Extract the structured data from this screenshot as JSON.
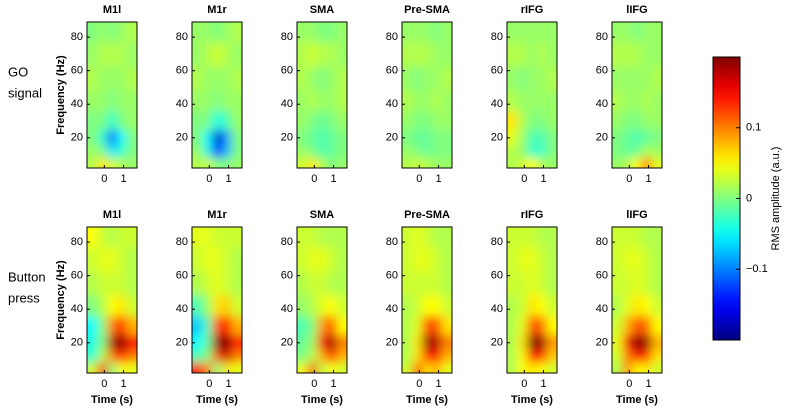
{
  "rows": [
    [
      "GO",
      "signal"
    ],
    [
      "Button",
      "press"
    ]
  ],
  "colorbar": {
    "label": "RMS amplitude (a.u.)",
    "colormap": "jet",
    "lim": [
      -0.2,
      0.2
    ],
    "ticks": [
      {
        "value": -0.1,
        "label": "−0.1"
      },
      0,
      0.1
    ]
  },
  "chart_data": [
    {
      "type": "heatmap",
      "title": "M1l",
      "ylabel": "Frequency (Hz)",
      "xlim": [
        -0.9,
        1.7
      ],
      "ylim": [
        2,
        89
      ],
      "xticks": [
        0,
        1
      ],
      "yticks": [
        20,
        40,
        60,
        80
      ],
      "x": [
        -0.6,
        -0.1,
        0.4,
        0.9,
        1.4
      ],
      "y": [
        5,
        12,
        20,
        30,
        42,
        55,
        70,
        85
      ],
      "z": [
        [
          0.02,
          0.06,
          0.03,
          0.02,
          0.01
        ],
        [
          0.01,
          0.0,
          -0.06,
          -0.03,
          0.0
        ],
        [
          0.0,
          -0.03,
          -0.11,
          -0.05,
          0.0
        ],
        [
          0.0,
          0.0,
          -0.03,
          0.0,
          0.01
        ],
        [
          0.01,
          0.01,
          0.0,
          0.01,
          0.01
        ],
        [
          0.02,
          0.01,
          0.01,
          0.01,
          0.02
        ],
        [
          0.01,
          0.02,
          0.02,
          0.02,
          0.01
        ],
        [
          0.0,
          0.01,
          0.0,
          0.01,
          0.02
        ]
      ]
    },
    {
      "type": "heatmap",
      "title": "M1r",
      "xlim": [
        -0.9,
        1.7
      ],
      "ylim": [
        2,
        89
      ],
      "xticks": [
        0,
        1
      ],
      "yticks": [
        20,
        40,
        60,
        80
      ],
      "x": [
        -0.6,
        -0.1,
        0.4,
        0.9,
        1.4
      ],
      "y": [
        5,
        12,
        20,
        30,
        42,
        55,
        70,
        85
      ],
      "z": [
        [
          0.02,
          0.03,
          0.0,
          0.0,
          0.01
        ],
        [
          0.01,
          -0.04,
          -0.15,
          -0.08,
          0.0
        ],
        [
          0.0,
          -0.05,
          -0.17,
          -0.09,
          0.0
        ],
        [
          0.0,
          0.0,
          -0.04,
          -0.02,
          0.01
        ],
        [
          0.01,
          0.01,
          0.0,
          0.01,
          0.01
        ],
        [
          0.02,
          0.01,
          0.01,
          0.01,
          0.02
        ],
        [
          0.01,
          0.02,
          0.03,
          0.02,
          0.01
        ],
        [
          0.01,
          0.01,
          0.0,
          0.01,
          0.02
        ]
      ]
    },
    {
      "type": "heatmap",
      "title": "SMA",
      "xlim": [
        -0.9,
        1.7
      ],
      "ylim": [
        2,
        89
      ],
      "xticks": [
        0,
        1
      ],
      "yticks": [
        20,
        40,
        60,
        80
      ],
      "x": [
        -0.6,
        -0.1,
        0.4,
        0.9,
        1.4
      ],
      "y": [
        5,
        12,
        20,
        30,
        42,
        55,
        70,
        85
      ],
      "z": [
        [
          0.03,
          0.06,
          0.02,
          0.0,
          0.01
        ],
        [
          0.01,
          0.0,
          -0.02,
          -0.01,
          0.0
        ],
        [
          0.0,
          -0.01,
          -0.02,
          -0.01,
          0.0
        ],
        [
          0.01,
          0.0,
          -0.01,
          0.0,
          0.01
        ],
        [
          0.01,
          0.02,
          0.01,
          0.01,
          0.02
        ],
        [
          0.02,
          0.01,
          0.0,
          0.01,
          0.02
        ],
        [
          0.02,
          0.03,
          0.02,
          0.02,
          0.01
        ],
        [
          0.01,
          0.01,
          0.0,
          0.0,
          0.01
        ]
      ]
    },
    {
      "type": "heatmap",
      "title": "Pre-SMA",
      "xlim": [
        -0.9,
        1.7
      ],
      "ylim": [
        2,
        89
      ],
      "xticks": [
        0,
        1
      ],
      "yticks": [
        20,
        40,
        60,
        80
      ],
      "x": [
        -0.6,
        -0.1,
        0.4,
        0.9,
        1.4
      ],
      "y": [
        5,
        12,
        20,
        30,
        42,
        55,
        70,
        85
      ],
      "z": [
        [
          0.02,
          0.03,
          0.02,
          0.01,
          0.01
        ],
        [
          0.01,
          0.0,
          -0.01,
          0.0,
          0.0
        ],
        [
          0.0,
          -0.01,
          -0.01,
          0.0,
          0.0
        ],
        [
          0.01,
          0.0,
          0.0,
          0.01,
          0.01
        ],
        [
          0.02,
          0.01,
          0.01,
          0.02,
          0.01
        ],
        [
          0.01,
          0.0,
          0.01,
          0.01,
          0.02
        ],
        [
          0.02,
          0.02,
          0.02,
          0.01,
          0.01
        ],
        [
          0.01,
          0.01,
          0.01,
          0.0,
          0.01
        ]
      ]
    },
    {
      "type": "heatmap",
      "title": "rIFG",
      "xlim": [
        -0.9,
        1.7
      ],
      "ylim": [
        2,
        89
      ],
      "xticks": [
        0,
        1
      ],
      "yticks": [
        20,
        40,
        60,
        80
      ],
      "x": [
        -0.6,
        -0.1,
        0.4,
        0.9,
        1.4
      ],
      "y": [
        5,
        12,
        20,
        30,
        42,
        55,
        70,
        85
      ],
      "z": [
        [
          0.02,
          0.03,
          0.05,
          0.02,
          0.01
        ],
        [
          0.02,
          0.01,
          -0.03,
          -0.03,
          0.0
        ],
        [
          0.04,
          0.01,
          -0.02,
          -0.02,
          0.0
        ],
        [
          0.06,
          0.02,
          0.0,
          0.0,
          0.01
        ],
        [
          0.02,
          0.01,
          0.01,
          0.01,
          0.01
        ],
        [
          0.01,
          0.0,
          0.01,
          0.01,
          0.02
        ],
        [
          0.02,
          0.02,
          0.01,
          0.02,
          0.01
        ],
        [
          0.01,
          0.01,
          0.01,
          0.01,
          0.01
        ]
      ]
    },
    {
      "type": "heatmap",
      "title": "lIFG",
      "xlim": [
        -0.9,
        1.7
      ],
      "ylim": [
        2,
        89
      ],
      "xticks": [
        0,
        1
      ],
      "yticks": [
        20,
        40,
        60,
        80
      ],
      "x": [
        -0.6,
        -0.1,
        0.4,
        0.9,
        1.4
      ],
      "y": [
        5,
        12,
        20,
        30,
        42,
        55,
        70,
        85
      ],
      "z": [
        [
          0.01,
          0.02,
          0.05,
          0.1,
          0.04
        ],
        [
          0.0,
          -0.01,
          -0.01,
          0.02,
          0.01
        ],
        [
          0.0,
          -0.01,
          -0.02,
          -0.01,
          0.0
        ],
        [
          0.01,
          0.0,
          0.0,
          0.01,
          0.01
        ],
        [
          0.02,
          0.01,
          0.01,
          0.02,
          0.01
        ],
        [
          0.01,
          0.01,
          0.01,
          0.01,
          0.02
        ],
        [
          0.02,
          0.02,
          0.02,
          0.01,
          0.01
        ],
        [
          0.01,
          0.01,
          0.0,
          0.01,
          0.01
        ]
      ]
    },
    {
      "type": "heatmap",
      "title": "M1l",
      "xlabel": "Time (s)",
      "ylabel": "Frequency (Hz)",
      "xlim": [
        -0.9,
        1.7
      ],
      "ylim": [
        2,
        89
      ],
      "xticks": [
        0,
        1
      ],
      "yticks": [
        20,
        40,
        60,
        80
      ],
      "x": [
        -0.6,
        -0.1,
        0.4,
        0.9,
        1.4
      ],
      "y": [
        5,
        12,
        20,
        30,
        42,
        55,
        70,
        85
      ],
      "z": [
        [
          0.03,
          0.15,
          0.0,
          0.05,
          0.04
        ],
        [
          -0.03,
          0.02,
          0.1,
          0.15,
          0.1
        ],
        [
          -0.04,
          0.0,
          0.18,
          0.2,
          0.15
        ],
        [
          -0.05,
          0.0,
          0.1,
          0.14,
          0.08
        ],
        [
          0.0,
          0.02,
          0.05,
          0.06,
          0.03
        ],
        [
          0.02,
          0.03,
          0.03,
          0.03,
          0.02
        ],
        [
          0.03,
          0.04,
          0.04,
          0.03,
          0.02
        ],
        [
          0.05,
          0.03,
          0.02,
          0.03,
          0.03
        ]
      ]
    },
    {
      "type": "heatmap",
      "title": "M1r",
      "xlabel": "Time (s)",
      "xlim": [
        -0.9,
        1.7
      ],
      "ylim": [
        2,
        89
      ],
      "xticks": [
        0,
        1
      ],
      "yticks": [
        20,
        40,
        60,
        80
      ],
      "x": [
        -0.6,
        -0.1,
        0.4,
        0.9,
        1.4
      ],
      "y": [
        5,
        12,
        20,
        30,
        42,
        55,
        70,
        85
      ],
      "z": [
        [
          0.14,
          0.1,
          0.0,
          0.06,
          0.04
        ],
        [
          -0.02,
          0.0,
          0.12,
          0.17,
          0.1
        ],
        [
          -0.05,
          -0.01,
          0.19,
          0.2,
          0.14
        ],
        [
          -0.07,
          -0.02,
          0.12,
          0.15,
          0.08
        ],
        [
          -0.02,
          0.01,
          0.06,
          0.07,
          0.03
        ],
        [
          0.02,
          0.03,
          0.04,
          0.03,
          0.02
        ],
        [
          0.03,
          0.04,
          0.04,
          0.03,
          0.02
        ],
        [
          0.04,
          0.04,
          0.03,
          0.03,
          0.03
        ]
      ]
    },
    {
      "type": "heatmap",
      "title": "SMA",
      "xlabel": "Time (s)",
      "xlim": [
        -0.9,
        1.7
      ],
      "ylim": [
        2,
        89
      ],
      "xticks": [
        0,
        1
      ],
      "yticks": [
        20,
        40,
        60,
        80
      ],
      "x": [
        -0.6,
        -0.1,
        0.4,
        0.9,
        1.4
      ],
      "y": [
        5,
        12,
        20,
        30,
        42,
        55,
        70,
        85
      ],
      "z": [
        [
          0.04,
          0.12,
          0.02,
          0.05,
          0.03
        ],
        [
          0.0,
          0.02,
          0.08,
          0.14,
          0.08
        ],
        [
          -0.01,
          0.01,
          0.14,
          0.19,
          0.1
        ],
        [
          -0.02,
          0.0,
          0.09,
          0.12,
          0.05
        ],
        [
          0.01,
          0.02,
          0.04,
          0.05,
          0.03
        ],
        [
          0.02,
          0.03,
          0.03,
          0.02,
          0.02
        ],
        [
          0.03,
          0.04,
          0.04,
          0.03,
          0.02
        ],
        [
          0.03,
          0.03,
          0.02,
          0.02,
          0.02
        ]
      ]
    },
    {
      "type": "heatmap",
      "title": "Pre-SMA",
      "xlabel": "Time (s)",
      "xlim": [
        -0.9,
        1.7
      ],
      "ylim": [
        2,
        89
      ],
      "xticks": [
        0,
        1
      ],
      "yticks": [
        20,
        40,
        60,
        80
      ],
      "x": [
        -0.6,
        -0.1,
        0.4,
        0.9,
        1.4
      ],
      "y": [
        5,
        12,
        20,
        30,
        42,
        55,
        70,
        85
      ],
      "z": [
        [
          0.03,
          0.12,
          0.06,
          0.08,
          0.04
        ],
        [
          0.02,
          0.06,
          0.14,
          0.15,
          0.08
        ],
        [
          0.02,
          0.06,
          0.19,
          0.18,
          0.1
        ],
        [
          0.02,
          0.04,
          0.12,
          0.12,
          0.06
        ],
        [
          0.02,
          0.03,
          0.05,
          0.05,
          0.03
        ],
        [
          0.03,
          0.03,
          0.03,
          0.03,
          0.02
        ],
        [
          0.03,
          0.04,
          0.04,
          0.03,
          0.02
        ],
        [
          0.03,
          0.04,
          0.03,
          0.02,
          0.02
        ]
      ]
    },
    {
      "type": "heatmap",
      "title": "rIFG",
      "xlabel": "Time (s)",
      "xlim": [
        -0.9,
        1.7
      ],
      "ylim": [
        2,
        89
      ],
      "xticks": [
        0,
        1
      ],
      "yticks": [
        20,
        40,
        60,
        80
      ],
      "x": [
        -0.6,
        -0.1,
        0.4,
        0.9,
        1.4
      ],
      "y": [
        5,
        12,
        20,
        30,
        42,
        55,
        70,
        85
      ],
      "z": [
        [
          0.02,
          0.05,
          0.06,
          0.05,
          0.03
        ],
        [
          0.02,
          0.05,
          0.15,
          0.14,
          0.07
        ],
        [
          0.02,
          0.06,
          0.2,
          0.19,
          0.09
        ],
        [
          0.02,
          0.04,
          0.12,
          0.11,
          0.05
        ],
        [
          0.02,
          0.03,
          0.06,
          0.05,
          0.03
        ],
        [
          0.03,
          0.03,
          0.04,
          0.03,
          0.02
        ],
        [
          0.03,
          0.04,
          0.04,
          0.03,
          0.02
        ],
        [
          0.03,
          0.03,
          0.03,
          0.02,
          0.02
        ]
      ]
    },
    {
      "type": "heatmap",
      "title": "lIFG",
      "xlabel": "Time (s)",
      "xlim": [
        -0.9,
        1.7
      ],
      "ylim": [
        2,
        89
      ],
      "xticks": [
        0,
        1
      ],
      "yticks": [
        20,
        40,
        60,
        80
      ],
      "x": [
        -0.6,
        -0.1,
        0.4,
        0.9,
        1.4
      ],
      "y": [
        5,
        12,
        20,
        30,
        42,
        55,
        70,
        85
      ],
      "z": [
        [
          0.02,
          0.1,
          0.05,
          0.06,
          0.03
        ],
        [
          0.03,
          0.1,
          0.14,
          0.13,
          0.06
        ],
        [
          0.04,
          0.15,
          0.2,
          0.19,
          0.08
        ],
        [
          0.03,
          0.08,
          0.12,
          0.11,
          0.05
        ],
        [
          0.02,
          0.04,
          0.06,
          0.05,
          0.03
        ],
        [
          0.03,
          0.03,
          0.04,
          0.03,
          0.02
        ],
        [
          0.03,
          0.04,
          0.04,
          0.03,
          0.02
        ],
        [
          0.03,
          0.03,
          0.03,
          0.02,
          0.02
        ]
      ]
    }
  ]
}
